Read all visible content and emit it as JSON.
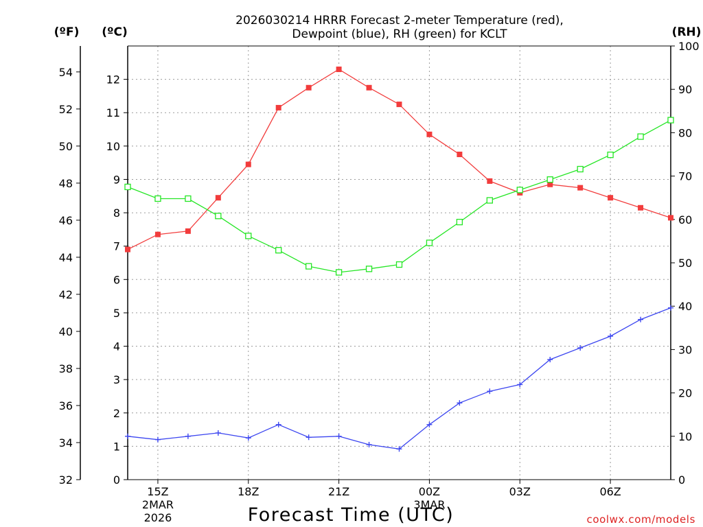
{
  "chart_data": {
    "type": "line",
    "title_line1": "2026030214 HRRR Forecast 2-meter Temperature (red),",
    "title_line2": "Dewpoint (blue), RH (green) for KCLT",
    "left_outer_unit": "(ºF)",
    "left_inner_unit": "(ºC)",
    "right_unit": "(RH)",
    "xlabel": "Forecast Time (UTC)",
    "credit": "coolwx.com/models",
    "x_hours": [
      14,
      15,
      16,
      17,
      18,
      19,
      20,
      21,
      22,
      23,
      24,
      25,
      26,
      27,
      28,
      29,
      30,
      31,
      32
    ],
    "xlim": [
      14,
      32
    ],
    "celsius_ylim": [
      0,
      13
    ],
    "celsius_ticks": [
      "0",
      "1",
      "2",
      "3",
      "4",
      "5",
      "6",
      "7",
      "8",
      "9",
      "10",
      "11",
      "12"
    ],
    "fahrenheit_ticks": [
      "32",
      "34",
      "36",
      "38",
      "40",
      "42",
      "44",
      "46",
      "48",
      "50",
      "52",
      "54"
    ],
    "rh_ylim": [
      0,
      100
    ],
    "rh_ticks": [
      "0",
      "10",
      "20",
      "30",
      "40",
      "50",
      "60",
      "70",
      "80",
      "90",
      "100"
    ],
    "x_ticks": [
      {
        "hour": 15,
        "label": "15Z",
        "sub1": "2MAR",
        "sub2": "2026"
      },
      {
        "hour": 18,
        "label": "18Z",
        "sub1": "",
        "sub2": ""
      },
      {
        "hour": 21,
        "label": "21Z",
        "sub1": "",
        "sub2": ""
      },
      {
        "hour": 24,
        "label": "00Z",
        "sub1": "3MAR",
        "sub2": ""
      },
      {
        "hour": 27,
        "label": "03Z",
        "sub1": "",
        "sub2": ""
      },
      {
        "hour": 30,
        "label": "06Z",
        "sub1": "",
        "sub2": ""
      }
    ],
    "series": [
      {
        "name": "Temperature",
        "axis": "celsius",
        "color": "#f23c3c",
        "marker": "filled-square",
        "values": [
          6.9,
          7.35,
          7.45,
          8.45,
          9.45,
          11.15,
          11.75,
          12.3,
          11.75,
          11.25,
          10.35,
          9.75,
          8.95,
          8.6,
          8.85,
          8.75,
          8.45,
          8.15,
          7.85
        ]
      },
      {
        "name": "Dewpoint",
        "axis": "celsius",
        "color": "#3c46f0",
        "marker": "plus",
        "values": [
          1.3,
          1.2,
          1.3,
          1.4,
          1.25,
          1.65,
          1.27,
          1.3,
          1.05,
          0.92,
          1.65,
          2.3,
          2.65,
          2.85,
          3.6,
          3.95,
          4.3,
          4.8,
          5.15
        ]
      },
      {
        "name": "RH",
        "axis": "rh",
        "color": "#24e624",
        "marker": "open-square",
        "values": [
          67.5,
          64.8,
          64.8,
          60.8,
          56.2,
          52.9,
          49.2,
          47.8,
          48.6,
          49.6,
          54.6,
          59.4,
          64.4,
          66.8,
          69.2,
          71.6,
          74.9,
          79.1,
          82.9
        ]
      }
    ]
  }
}
